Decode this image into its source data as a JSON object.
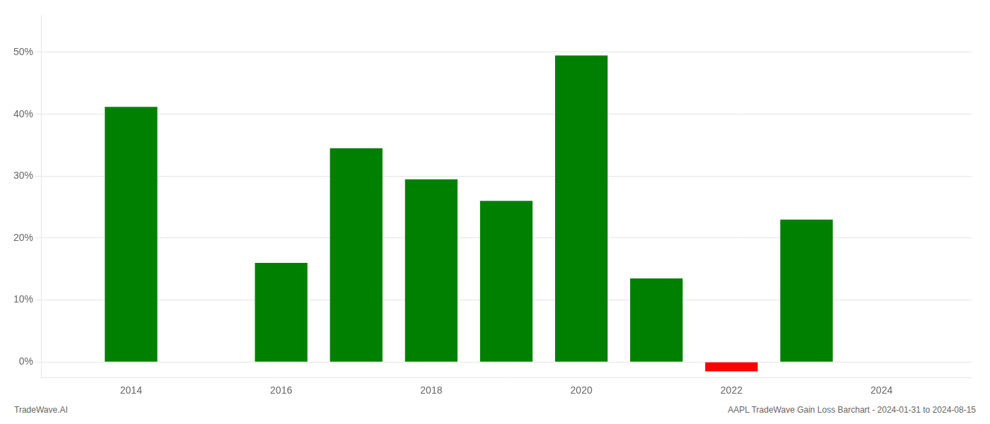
{
  "chart_data": {
    "type": "bar",
    "x": [
      2014,
      2015,
      2016,
      2017,
      2018,
      2019,
      2020,
      2021,
      2022,
      2023,
      2024
    ],
    "values": [
      41.2,
      null,
      16.0,
      34.5,
      29.5,
      26.0,
      49.5,
      13.5,
      -1.5,
      23.0,
      null
    ],
    "colors": [
      "#008000",
      null,
      "#008000",
      "#008000",
      "#008000",
      "#008000",
      "#008000",
      "#008000",
      "#FF0000",
      "#008000",
      null
    ],
    "xlim": [
      2012.8,
      2025.2
    ],
    "xticks": [
      2014,
      2016,
      2018,
      2020,
      2022,
      2024
    ],
    "ylim": [
      -2.5,
      56
    ],
    "yticks": [
      {
        "value": 0,
        "label": "0%"
      },
      {
        "value": 10,
        "label": "10%"
      },
      {
        "value": 20,
        "label": "20%"
      },
      {
        "value": 30,
        "label": "30%"
      },
      {
        "value": 40,
        "label": "40%"
      },
      {
        "value": 50,
        "label": "50%"
      }
    ],
    "grid": true,
    "annotations": [
      "TradeWave.AI",
      "AAPL TradeWave Gain Loss Barchart - 2024-01-31 to 2024-08-15"
    ]
  }
}
